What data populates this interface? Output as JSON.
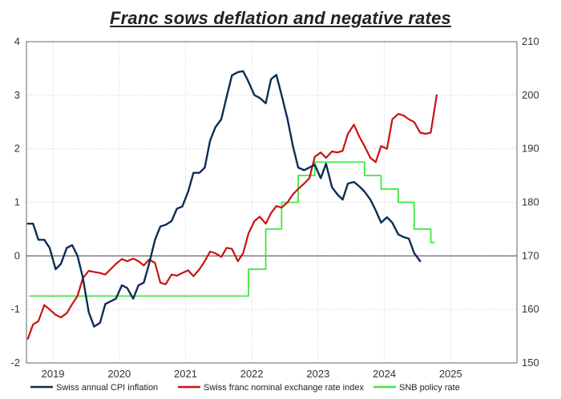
{
  "chart_data": {
    "type": "line",
    "title": "Franc sows deflation and negative rates",
    "x_axis": {
      "range": [
        2018.6,
        2026.0
      ],
      "tick_labels": [
        "2019",
        "2020",
        "2021",
        "2022",
        "2023",
        "2024",
        "2025"
      ],
      "tick_positions": [
        2019.0,
        2020.0,
        2021.0,
        2022.0,
        2023.0,
        2024.0,
        2025.0
      ]
    },
    "left_axis": {
      "range": [
        -2,
        4
      ],
      "ticks": [
        -2,
        -1,
        0,
        1,
        2,
        3,
        4
      ],
      "tick_labels": [
        "-2",
        "-1",
        "0",
        "1",
        "2",
        "3",
        "4"
      ]
    },
    "right_axis": {
      "range": [
        150,
        210
      ],
      "ticks": [
        150,
        160,
        170,
        180,
        190,
        200,
        210
      ],
      "tick_labels": [
        "150",
        "160",
        "170",
        "180",
        "190",
        "200",
        "210"
      ]
    },
    "grid": true,
    "legend_position": "bottom",
    "series": [
      {
        "name": "Swiss annual CPI inflation",
        "axis": "left",
        "color": "#0d2d55",
        "points": [
          [
            2018.62,
            0.6
          ],
          [
            2018.7,
            0.6
          ],
          [
            2018.78,
            0.3
          ],
          [
            2018.87,
            0.3
          ],
          [
            2018.95,
            0.15
          ],
          [
            2019.04,
            -0.25
          ],
          [
            2019.12,
            -0.15
          ],
          [
            2019.21,
            0.15
          ],
          [
            2019.29,
            0.2
          ],
          [
            2019.37,
            0.0
          ],
          [
            2019.45,
            -0.4
          ],
          [
            2019.54,
            -1.05
          ],
          [
            2019.62,
            -1.32
          ],
          [
            2019.71,
            -1.25
          ],
          [
            2019.79,
            -0.9
          ],
          [
            2019.87,
            -0.85
          ],
          [
            2019.95,
            -0.8
          ],
          [
            2020.04,
            -0.55
          ],
          [
            2020.12,
            -0.6
          ],
          [
            2020.21,
            -0.8
          ],
          [
            2020.29,
            -0.55
          ],
          [
            2020.37,
            -0.5
          ],
          [
            2020.45,
            -0.15
          ],
          [
            2020.54,
            0.3
          ],
          [
            2020.62,
            0.55
          ],
          [
            2020.7,
            0.58
          ],
          [
            2020.79,
            0.65
          ],
          [
            2020.87,
            0.88
          ],
          [
            2020.95,
            0.92
          ],
          [
            2021.04,
            1.2
          ],
          [
            2021.12,
            1.55
          ],
          [
            2021.21,
            1.55
          ],
          [
            2021.29,
            1.65
          ],
          [
            2021.37,
            2.15
          ],
          [
            2021.45,
            2.4
          ],
          [
            2021.54,
            2.55
          ],
          [
            2021.62,
            2.97
          ],
          [
            2021.7,
            3.37
          ],
          [
            2021.79,
            3.43
          ],
          [
            2021.87,
            3.45
          ],
          [
            2021.95,
            3.25
          ],
          [
            2022.04,
            3.0
          ],
          [
            2022.12,
            2.95
          ],
          [
            2022.21,
            2.85
          ],
          [
            2022.29,
            3.3
          ],
          [
            2022.37,
            3.38
          ],
          [
            2022.45,
            3.0
          ],
          [
            2022.54,
            2.55
          ],
          [
            2022.62,
            2.05
          ],
          [
            2022.7,
            1.65
          ],
          [
            2022.79,
            1.6
          ],
          [
            2022.87,
            1.65
          ],
          [
            2022.95,
            1.7
          ],
          [
            2023.04,
            1.45
          ],
          [
            2023.12,
            1.72
          ],
          [
            2023.21,
            1.28
          ],
          [
            2023.29,
            1.15
          ],
          [
            2023.37,
            1.05
          ],
          [
            2023.45,
            1.35
          ],
          [
            2023.54,
            1.38
          ],
          [
            2023.62,
            1.3
          ],
          [
            2023.7,
            1.2
          ],
          [
            2023.79,
            1.05
          ],
          [
            2023.87,
            0.85
          ],
          [
            2023.95,
            0.62
          ],
          [
            2024.04,
            0.72
          ],
          [
            2024.12,
            0.62
          ],
          [
            2024.21,
            0.4
          ],
          [
            2024.29,
            0.35
          ],
          [
            2024.37,
            0.32
          ],
          [
            2024.45,
            0.05
          ],
          [
            2024.54,
            -0.1
          ]
        ]
      },
      {
        "name": "Swiss franc nominal exchange rate index",
        "axis": "right",
        "color": "#cc1111",
        "points": [
          [
            2018.62,
            154.5
          ],
          [
            2018.7,
            157.2
          ],
          [
            2018.78,
            157.8
          ],
          [
            2018.87,
            160.8
          ],
          [
            2018.95,
            160.0
          ],
          [
            2019.04,
            159.0
          ],
          [
            2019.12,
            158.5
          ],
          [
            2019.21,
            159.3
          ],
          [
            2019.29,
            161.0
          ],
          [
            2019.37,
            162.5
          ],
          [
            2019.45,
            165.8
          ],
          [
            2019.54,
            167.2
          ],
          [
            2019.62,
            167.0
          ],
          [
            2019.71,
            166.8
          ],
          [
            2019.79,
            166.5
          ],
          [
            2019.87,
            167.5
          ],
          [
            2019.95,
            168.5
          ],
          [
            2020.04,
            169.4
          ],
          [
            2020.12,
            169.0
          ],
          [
            2020.21,
            169.5
          ],
          [
            2020.29,
            169.0
          ],
          [
            2020.37,
            168.2
          ],
          [
            2020.45,
            169.3
          ],
          [
            2020.54,
            168.7
          ],
          [
            2020.62,
            165.0
          ],
          [
            2020.7,
            164.7
          ],
          [
            2020.79,
            166.5
          ],
          [
            2020.87,
            166.3
          ],
          [
            2020.95,
            166.8
          ],
          [
            2021.04,
            167.3
          ],
          [
            2021.12,
            166.2
          ],
          [
            2021.21,
            167.5
          ],
          [
            2021.29,
            169.0
          ],
          [
            2021.37,
            170.8
          ],
          [
            2021.45,
            170.5
          ],
          [
            2021.54,
            169.8
          ],
          [
            2021.62,
            171.5
          ],
          [
            2021.7,
            171.3
          ],
          [
            2021.79,
            169.0
          ],
          [
            2021.87,
            170.5
          ],
          [
            2021.95,
            174.2
          ],
          [
            2022.04,
            176.5
          ],
          [
            2022.12,
            177.3
          ],
          [
            2022.21,
            176.0
          ],
          [
            2022.29,
            178.0
          ],
          [
            2022.37,
            179.3
          ],
          [
            2022.45,
            179.0
          ],
          [
            2022.54,
            180.0
          ],
          [
            2022.62,
            181.5
          ],
          [
            2022.7,
            182.5
          ],
          [
            2022.79,
            183.5
          ],
          [
            2022.87,
            184.5
          ],
          [
            2022.95,
            188.5
          ],
          [
            2023.04,
            189.3
          ],
          [
            2023.12,
            188.3
          ],
          [
            2023.21,
            189.5
          ],
          [
            2023.29,
            189.3
          ],
          [
            2023.37,
            189.6
          ],
          [
            2023.45,
            192.8
          ],
          [
            2023.54,
            194.5
          ],
          [
            2023.62,
            192.3
          ],
          [
            2023.7,
            190.5
          ],
          [
            2023.79,
            188.3
          ],
          [
            2023.87,
            187.5
          ],
          [
            2023.95,
            190.5
          ],
          [
            2024.04,
            190.0
          ],
          [
            2024.12,
            195.5
          ],
          [
            2024.21,
            196.5
          ],
          [
            2024.29,
            196.2
          ],
          [
            2024.37,
            195.5
          ],
          [
            2024.45,
            195.0
          ],
          [
            2024.54,
            193.0
          ],
          [
            2024.62,
            192.8
          ],
          [
            2024.7,
            193.0
          ],
          [
            2024.79,
            200.0
          ]
        ]
      },
      {
        "name": "SNB policy rate",
        "axis": "left",
        "color": "#3fe83f",
        "points": [
          [
            2018.65,
            -0.75
          ],
          [
            2021.95,
            -0.75
          ],
          [
            2021.95,
            -0.25
          ],
          [
            2022.21,
            -0.25
          ],
          [
            2022.21,
            0.5
          ],
          [
            2022.45,
            0.5
          ],
          [
            2022.45,
            1.0
          ],
          [
            2022.7,
            1.0
          ],
          [
            2022.7,
            1.5
          ],
          [
            2022.95,
            1.5
          ],
          [
            2022.95,
            1.75
          ],
          [
            2023.7,
            1.75
          ],
          [
            2023.7,
            1.5
          ],
          [
            2023.95,
            1.5
          ],
          [
            2023.95,
            1.25
          ],
          [
            2024.21,
            1.25
          ],
          [
            2024.21,
            1.0
          ],
          [
            2024.45,
            1.0
          ],
          [
            2024.45,
            0.5
          ],
          [
            2024.7,
            0.5
          ],
          [
            2024.7,
            0.25
          ],
          [
            2024.75,
            0.25
          ]
        ]
      }
    ]
  }
}
